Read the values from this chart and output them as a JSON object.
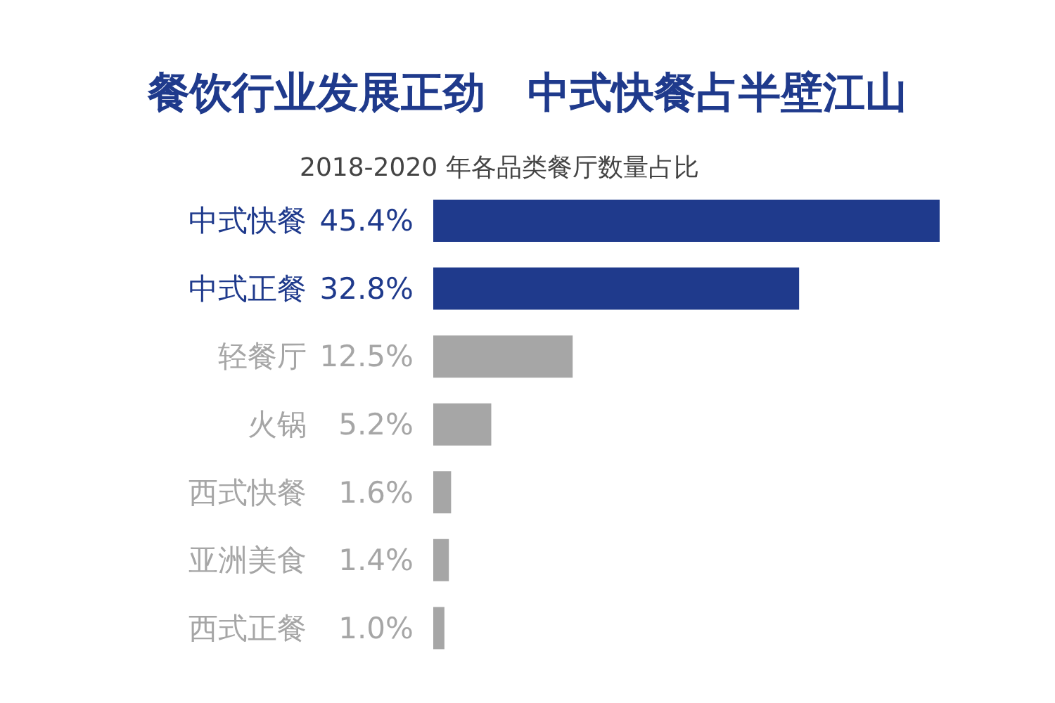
{
  "chart_data": {
    "type": "bar",
    "orientation": "horizontal",
    "title": "餐饮行业发展正劲　中式快餐占半壁江山",
    "subtitle": "2018-2020 年各品类餐厅数量占比",
    "categories": [
      "中式快餐",
      "中式正餐",
      "轻餐厅",
      "火锅",
      "西式快餐",
      "亚洲美食",
      "西式正餐"
    ],
    "values": [
      45.4,
      32.8,
      12.5,
      5.2,
      1.6,
      1.4,
      1.0
    ],
    "value_labels": [
      "45.4%",
      "32.8%",
      "12.5%",
      "5.2%",
      "1.6%",
      "1.4%",
      "1.0%"
    ],
    "colors": [
      "#1f3a8c",
      "#1f3a8c",
      "#a6a6a6",
      "#a6a6a6",
      "#a6a6a6",
      "#a6a6a6",
      "#a6a6a6"
    ],
    "grid": false,
    "legend": false
  }
}
